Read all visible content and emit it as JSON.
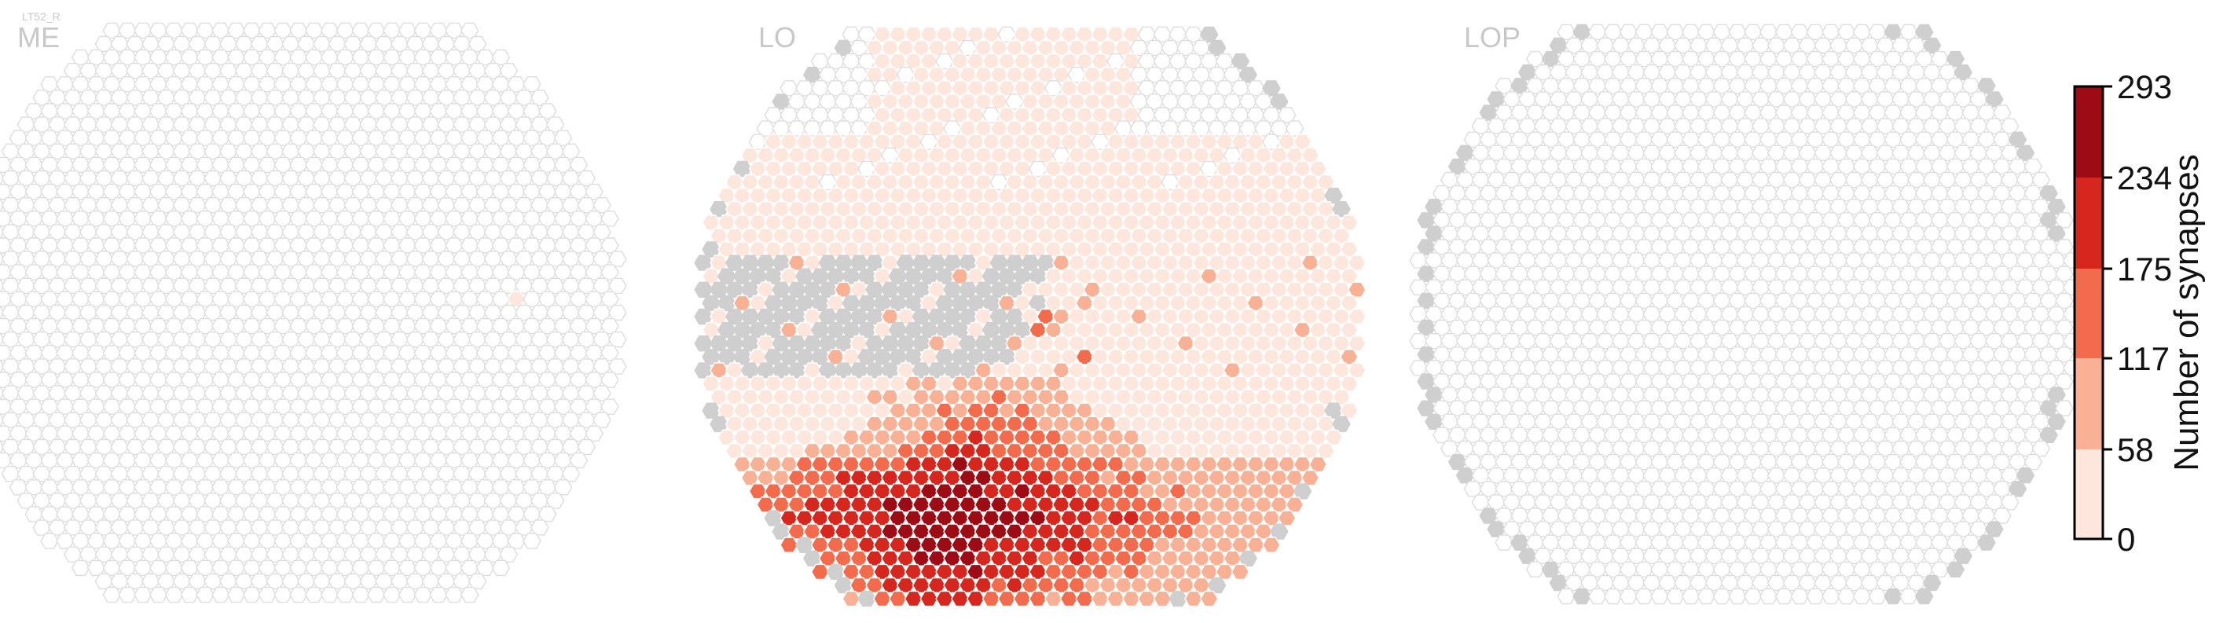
{
  "cell_type": "LT52_R",
  "panels": [
    {
      "id": "ME",
      "label": "ME"
    },
    {
      "id": "LO",
      "label": "LO"
    },
    {
      "id": "LOP",
      "label": "LOP"
    }
  ],
  "colorbar": {
    "title": "Number of synapses",
    "tick_labels": [
      "0",
      "58",
      "117",
      "175",
      "234",
      "293"
    ],
    "bin_edges": [
      0,
      58,
      117,
      175,
      234,
      293
    ],
    "bin_colors": [
      "#fde6dc",
      "#f9b196",
      "#f26b4c",
      "#d6271f",
      "#9d0c14"
    ]
  },
  "colors": {
    "empty_fill": "#ffffff",
    "empty_stroke": "#dddddd",
    "outside_fill": "#cfcfcf",
    "filled_stroke": "#ffffff",
    "label_gray": "#c8c8c8"
  },
  "chart_data": [
    {
      "type": "heatmap",
      "title": "ME",
      "description_of_values": "synapse count per hex column",
      "nonzero_columns": [
        {
          "row": -1,
          "col": 14,
          "value": 10
        }
      ],
      "all_other_columns_value": 0,
      "colorbar_range": [
        0,
        293
      ]
    },
    {
      "type": "heatmap",
      "title": "LO",
      "value_by_region": [
        {
          "region": "dorsal half",
          "value_range": [
            1,
            57
          ]
        },
        {
          "region": "central scattered cells",
          "value_range": [
            58,
            174
          ]
        },
        {
          "region": "ventral band",
          "value_range": [
            117,
            293
          ]
        }
      ],
      "colorbar_range": [
        0,
        293
      ]
    },
    {
      "type": "heatmap",
      "title": "LOP",
      "all_columns_value": 0,
      "colorbar_range": [
        0,
        293
      ]
    }
  ]
}
